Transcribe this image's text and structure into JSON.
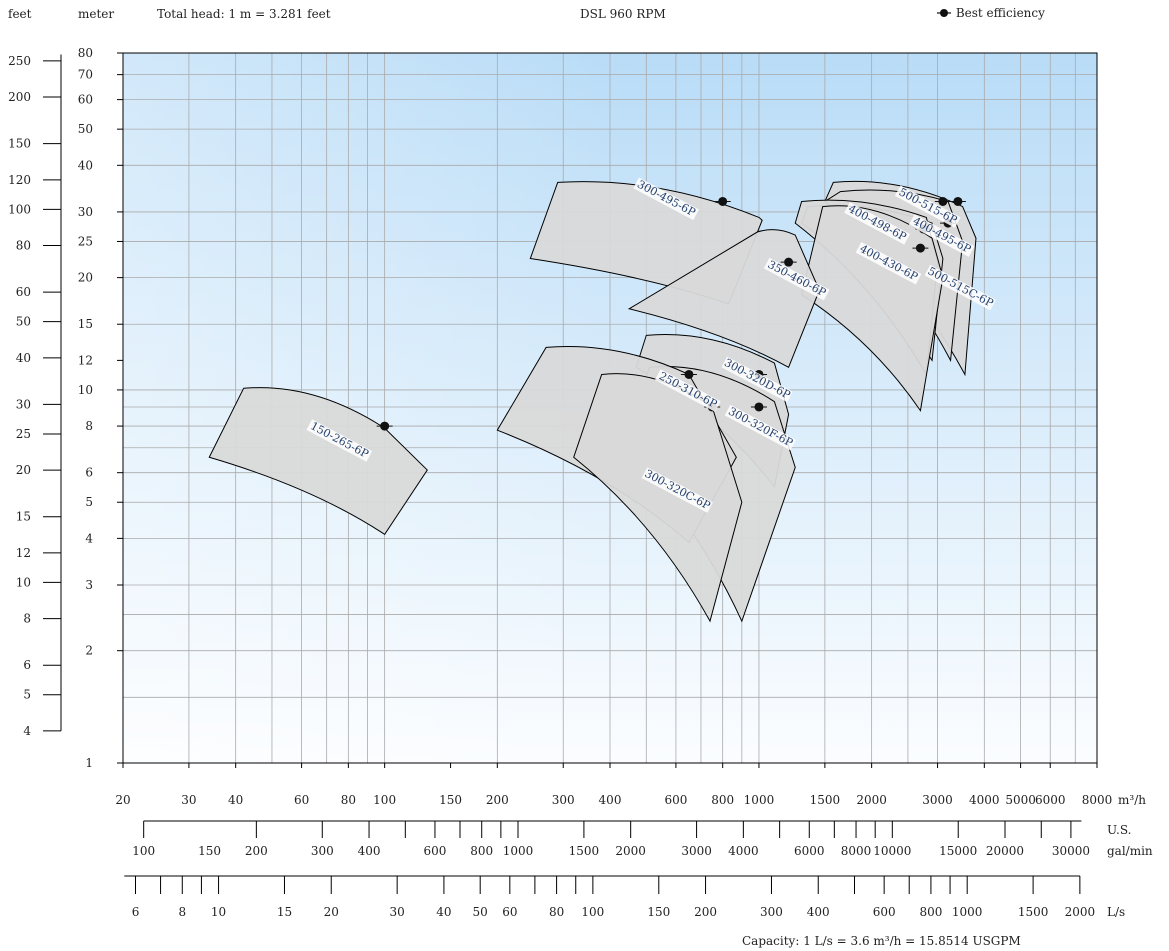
{
  "header": {
    "feet_label": "feet",
    "meter_label": "meter",
    "conversion_note": "Total head: 1 m = 3.281 feet",
    "series_title": "DSL 960 RPM",
    "legend_label": "Best efficiency"
  },
  "footer": {
    "capacity_note": "Capacity: 1 L/s = 3.6 m³/h = 15.8514 USGPM"
  },
  "colors": {
    "plot_bg_top": "#b9dcf7",
    "plot_bg_bottom": "#fbfdff",
    "grid": "#aaaaaa",
    "region_fill": "#d9d9d9",
    "region_stroke": "#000000",
    "marker": "#111111"
  },
  "chart_data": {
    "type": "pump selection chart",
    "title": "DSL 960 RPM",
    "x_axis": {
      "label": "m³/h",
      "scale": "log",
      "range": [
        20,
        8000
      ],
      "ticks": [
        20,
        30,
        40,
        60,
        80,
        100,
        150,
        200,
        300,
        400,
        600,
        800,
        1000,
        1500,
        2000,
        3000,
        4000,
        5000,
        6000,
        8000
      ]
    },
    "x_axis_usgpm": {
      "label": "U.S. gal/min",
      "label_line1": "U.S.",
      "label_line2": "gal/min",
      "ticks": [
        100,
        150,
        200,
        300,
        400,
        600,
        800,
        1000,
        1500,
        2000,
        3000,
        4000,
        6000,
        8000,
        10000,
        15000,
        20000,
        30000
      ]
    },
    "x_axis_ls": {
      "label": "L/s",
      "ticks": [
        6,
        8,
        10,
        15,
        20,
        30,
        40,
        50,
        60,
        80,
        100,
        150,
        200,
        300,
        400,
        600,
        800,
        1000,
        1500,
        2000
      ]
    },
    "y_axis": {
      "label": "meter",
      "scale": "log",
      "range": [
        1,
        80
      ],
      "ticks": [
        1,
        2,
        3,
        4,
        5,
        6,
        8,
        10,
        12,
        15,
        20,
        25,
        30,
        40,
        50,
        60,
        70,
        80
      ]
    },
    "y_axis_feet": {
      "label": "feet",
      "ticks": [
        4,
        5,
        6,
        8,
        10,
        12,
        15,
        20,
        25,
        30,
        40,
        50,
        60,
        80,
        100,
        120,
        150,
        200,
        250
      ]
    },
    "grid": true,
    "legend": {
      "position": "top-right",
      "entries": [
        "Best efficiency"
      ]
    },
    "regions": [
      {
        "name": "150-265-6P",
        "ul": [
          42,
          10.1
        ],
        "ur": [
          100,
          7.9
        ],
        "rt": [
          130,
          6.1
        ],
        "rb": [
          100,
          4.1
        ],
        "ll": [
          34,
          6.6
        ],
        "bep": [
          100,
          8.0
        ],
        "label_at": [
          75,
          7.2
        ]
      },
      {
        "name": "300-495-6P",
        "ul": [
          290,
          36
        ],
        "ur": [
          1000,
          29
        ],
        "rt": [
          1020,
          28.5
        ],
        "rb": [
          830,
          17
        ],
        "ll": [
          245,
          22.5
        ],
        "bep": [
          800,
          32
        ],
        "label_at": [
          560,
          32
        ]
      },
      {
        "name": "500-515-6P",
        "ul": [
          1580,
          36
        ],
        "ur": [
          3500,
          31
        ],
        "rt": [
          3800,
          25.5
        ],
        "rb": [
          3550,
          11
        ],
        "ll": [
          1500,
          32
        ],
        "bep": [
          3100,
          32
        ],
        "label_at": [
          2800,
          30.5
        ]
      },
      {
        "name": "500-515C-6P",
        "ul": [
          1650,
          34
        ],
        "ur": [
          3200,
          32
        ],
        "rt": [
          3500,
          25
        ],
        "rb": [
          3250,
          12
        ],
        "ll": [
          1500,
          32
        ],
        "bep": [
          3400,
          32
        ],
        "label_at": [
          3420,
          18.5
        ]
      },
      {
        "name": "400-495-6P",
        "ul": [
          1350,
          31
        ],
        "ur": [
          2900,
          28
        ],
        "rt": [
          3100,
          22.5
        ],
        "rb": [
          2900,
          12
        ],
        "ll": [
          1300,
          28
        ],
        "bep": [
          3200,
          28
        ],
        "label_at": [
          3050,
          25.5
        ]
      },
      {
        "name": "400-498-6P",
        "ul": [
          1300,
          32
        ],
        "ur": [
          2800,
          29
        ],
        "rt": [
          3000,
          22
        ],
        "rb": [
          2800,
          11
        ],
        "ll": [
          1250,
          28
        ],
        "bep": [
          2750,
          27
        ],
        "label_at": [
          2050,
          27.5
        ]
      },
      {
        "name": "400-430-6P",
        "ul": [
          1480,
          31
        ],
        "ur": [
          2900,
          25.5
        ],
        "rt": [
          3100,
          20
        ],
        "rb": [
          2700,
          8.8
        ],
        "ll": [
          1300,
          18
        ],
        "bep": [
          2700,
          24
        ],
        "label_at": [
          2200,
          21.5
        ]
      },
      {
        "name": "350-460-6P",
        "ul": [
          990,
          26.5
        ],
        "ur": [
          1250,
          26
        ],
        "rt": [
          1450,
          18.5
        ],
        "rb": [
          1200,
          11.5
        ],
        "ll": [
          450,
          16.5
        ],
        "bep": [
          1200,
          22
        ],
        "label_at": [
          1250,
          19.5
        ]
      },
      {
        "name": "300-320D-6P",
        "ul": [
          500,
          14
        ],
        "ur": [
          1100,
          11.8
        ],
        "rt": [
          1200,
          8.6
        ],
        "rb": [
          1100,
          5.5
        ],
        "ll": [
          470,
          11.5
        ],
        "bep": [
          1000,
          11
        ],
        "label_at": [
          980,
          10.5
        ]
      },
      {
        "name": "300-320F-6P",
        "ul": [
          510,
          11.5
        ],
        "ur": [
          1100,
          9.3
        ],
        "rt": [
          1250,
          6.2
        ],
        "rb": [
          900,
          2.4
        ],
        "ll": [
          430,
          7
        ],
        "bep": [
          1000,
          9
        ],
        "label_at": [
          1000,
          7.8
        ]
      },
      {
        "name": "250-310-6P",
        "ul": [
          270,
          13
        ],
        "ur": [
          650,
          11
        ],
        "rt": [
          870,
          6.6
        ],
        "rb": [
          650,
          3.9
        ],
        "ll": [
          200,
          7.8
        ],
        "bep": [
          650,
          11
        ],
        "label_at": [
          640,
          9.8
        ]
      },
      {
        "name": "300-320C-6P",
        "ul": [
          380,
          11
        ],
        "ur": [
          750,
          9
        ],
        "rt": [
          900,
          5
        ],
        "rb": [
          740,
          2.4
        ],
        "ll": [
          320,
          6.6
        ],
        "bep": [
          750,
          9
        ],
        "label_at": [
          600,
          5.3
        ]
      }
    ]
  }
}
